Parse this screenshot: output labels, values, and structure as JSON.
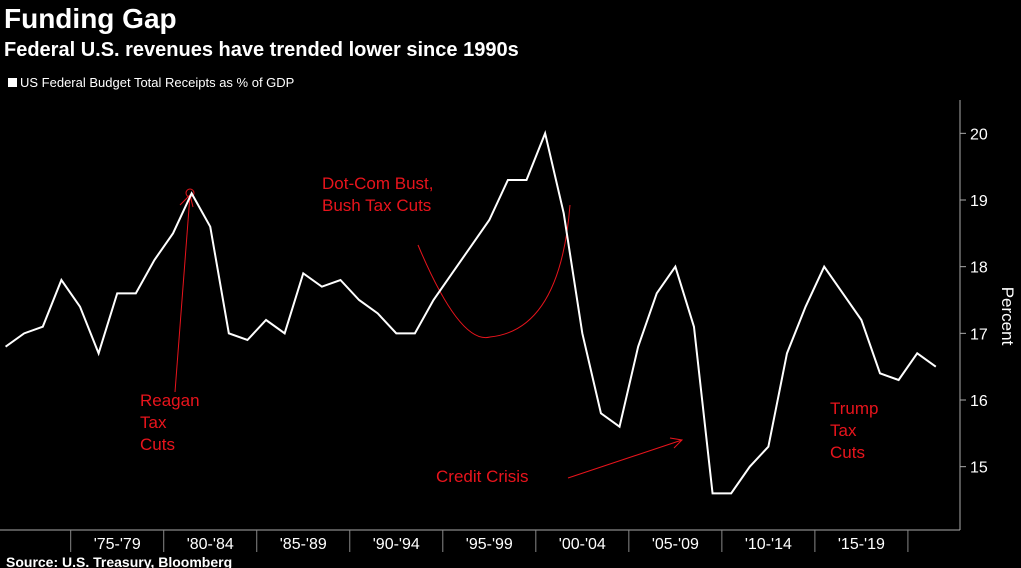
{
  "chart_data": {
    "type": "line",
    "title": "Funding Gap",
    "subtitle": "Federal U.S. revenues have trended lower since 1990s",
    "y_axis_label": "Percent",
    "source": "Source: U.S. Treasury, Bloomberg",
    "x": [
      1971,
      1972,
      1973,
      1974,
      1975,
      1976,
      1977,
      1978,
      1979,
      1980,
      1981,
      1982,
      1983,
      1984,
      1985,
      1986,
      1987,
      1988,
      1989,
      1990,
      1991,
      1992,
      1993,
      1994,
      1995,
      1996,
      1997,
      1998,
      1999,
      2000,
      2001,
      2002,
      2003,
      2004,
      2005,
      2006,
      2007,
      2008,
      2009,
      2010,
      2011,
      2012,
      2013,
      2014,
      2015,
      2016,
      2017,
      2018,
      2019,
      2020,
      2021
    ],
    "series": [
      {
        "name": "US Federal Budget Total Receipts as % of GDP",
        "color": "#ffffff",
        "values": [
          16.8,
          17.0,
          17.1,
          17.8,
          17.4,
          16.7,
          17.6,
          17.6,
          18.1,
          18.5,
          19.1,
          18.6,
          17.0,
          16.9,
          17.2,
          17.0,
          17.9,
          17.7,
          17.8,
          17.5,
          17.3,
          17.0,
          17.0,
          17.5,
          17.9,
          18.3,
          18.7,
          19.3,
          19.3,
          20.0,
          18.8,
          17.0,
          15.8,
          15.6,
          16.8,
          17.6,
          18.0,
          17.1,
          14.6,
          14.6,
          15.0,
          15.3,
          16.7,
          17.4,
          18.0,
          17.6,
          17.2,
          16.4,
          16.3,
          16.7,
          16.5
        ]
      }
    ],
    "xlim": [
      1970.7,
      2022.3
    ],
    "xticks": [
      {
        "value": 1977,
        "label": "'75-'79"
      },
      {
        "value": 1982,
        "label": "'80-'84"
      },
      {
        "value": 1987,
        "label": "'85-'89"
      },
      {
        "value": 1992,
        "label": "'90-'94"
      },
      {
        "value": 1997,
        "label": "'95-'99"
      },
      {
        "value": 2002,
        "label": "'00-'04"
      },
      {
        "value": 2007,
        "label": "'05-'09"
      },
      {
        "value": 2012,
        "label": "'10-'14"
      },
      {
        "value": 2017,
        "label": "'15-'19"
      }
    ],
    "ylim": [
      14.05,
      20.5
    ],
    "yticks": [
      15,
      16,
      17,
      18,
      19,
      20
    ],
    "annotations": [
      {
        "lines": [
          "Reagan",
          "Tax",
          "Cuts"
        ],
        "color": "#e8141c"
      },
      {
        "lines": [
          "Dot-Com Bust,",
          "Bush Tax Cuts"
        ],
        "color": "#e8141c"
      },
      {
        "lines": [
          "Credit Crisis"
        ],
        "color": "#e8141c"
      },
      {
        "lines": [
          "Trump",
          "Tax",
          "Cuts"
        ],
        "color": "#e8141c"
      }
    ]
  }
}
